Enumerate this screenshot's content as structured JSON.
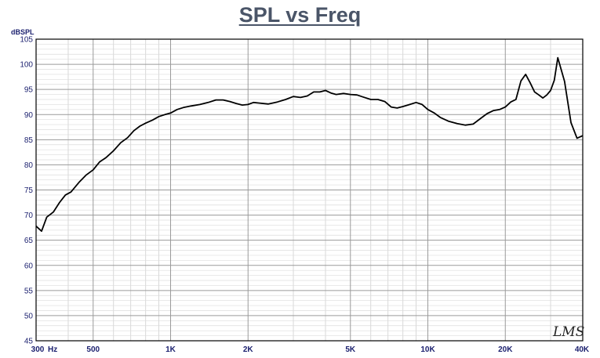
{
  "chart_data": {
    "type": "line",
    "title": "SPL vs Freq",
    "ylabel": "dBSPL",
    "xlabel": "",
    "xscale": "log",
    "xlim": [
      300,
      40000
    ],
    "ylim": [
      45,
      105
    ],
    "y_ticks": [
      "45",
      "50",
      "55",
      "60",
      "65",
      "70",
      "75",
      "80",
      "85",
      "90",
      "95",
      "100",
      "105"
    ],
    "x_ticks": [
      {
        "value": 300,
        "label": "300"
      },
      {
        "value": 500,
        "label": "500"
      },
      {
        "value": 1000,
        "label": "1K"
      },
      {
        "value": 2000,
        "label": "2K"
      },
      {
        "value": 5000,
        "label": "5K"
      },
      {
        "value": 10000,
        "label": "10K"
      },
      {
        "value": 20000,
        "label": "20K"
      },
      {
        "value": 40000,
        "label": "40K"
      }
    ],
    "x_unit": "Hz",
    "grid": true,
    "line_color": "#000000",
    "watermark": "LMS",
    "series": [
      {
        "x": [
          300,
          315,
          330,
          350,
          370,
          390,
          410,
          440,
          470,
          500,
          530,
          560,
          600,
          640,
          680,
          720,
          760,
          800,
          850,
          900,
          950,
          1000,
          1060,
          1120,
          1200,
          1300,
          1400,
          1500,
          1600,
          1700,
          1800,
          1900,
          2000,
          2100,
          2200,
          2400,
          2600,
          2800,
          3000,
          3200,
          3400,
          3600,
          3800,
          4000,
          4200,
          4400,
          4700,
          5000,
          5300,
          5600,
          6000,
          6400,
          6800,
          7200,
          7600,
          8000,
          8500,
          9000,
          9500,
          10000,
          10600,
          11200,
          12000,
          13000,
          14000,
          15000,
          16000,
          17000,
          18000,
          19000,
          20000,
          21000,
          22000,
          23000,
          24000,
          25000,
          26000,
          27000,
          28000,
          29000,
          30000,
          31000,
          32000,
          34000,
          36000,
          38000,
          40000
        ],
        "y": [
          67.8,
          66.8,
          69.6,
          70.6,
          72.5,
          74.0,
          74.6,
          76.5,
          78.0,
          79.0,
          80.6,
          81.4,
          82.8,
          84.4,
          85.4,
          86.8,
          87.7,
          88.3,
          88.9,
          89.6,
          90.0,
          90.3,
          91.0,
          91.4,
          91.7,
          92.0,
          92.4,
          92.9,
          92.9,
          92.6,
          92.2,
          91.9,
          92.0,
          92.4,
          92.3,
          92.1,
          92.5,
          93.0,
          93.6,
          93.4,
          93.7,
          94.5,
          94.5,
          94.8,
          94.3,
          94.0,
          94.2,
          94.0,
          93.9,
          93.5,
          93.0,
          93.0,
          92.6,
          91.5,
          91.3,
          91.6,
          92.0,
          92.4,
          92.0,
          91.0,
          90.3,
          89.4,
          88.7,
          88.2,
          87.9,
          88.1,
          89.2,
          90.2,
          90.8,
          91.0,
          91.5,
          92.5,
          93.0,
          96.7,
          98.0,
          96.3,
          94.5,
          93.9,
          93.3,
          93.9,
          94.8,
          96.8,
          101.3,
          96.6,
          88.4,
          85.3,
          85.8
        ]
      }
    ]
  }
}
